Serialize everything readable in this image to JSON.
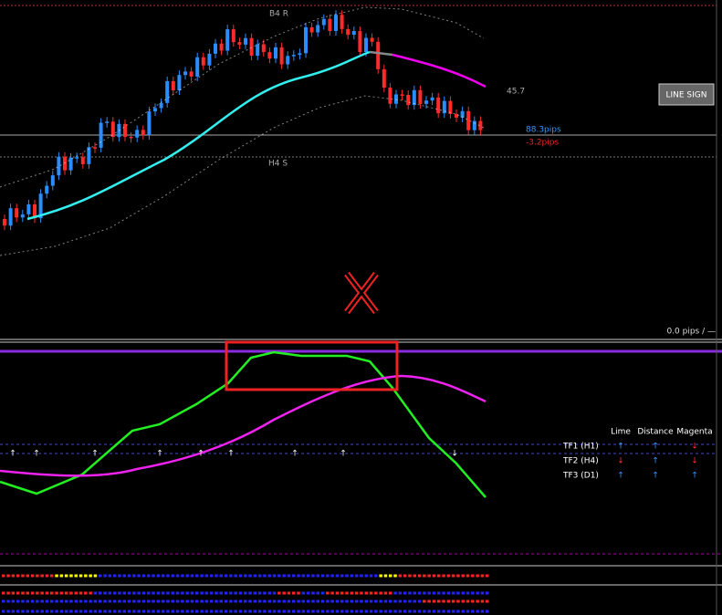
{
  "main_pane": {
    "resistance_label": "B4 R",
    "support_label": "H4 S",
    "level_value": "45.7",
    "profit_pips": "88.3pips",
    "loss_pips": "-3.2pips",
    "pips_status": "0.0 pips / —"
  },
  "button": {
    "label": "LINE SIGN"
  },
  "signal_table": {
    "headers": [
      "Lime",
      "Distance",
      "Magenta"
    ],
    "rows": [
      {
        "label": "TF1 (H1)",
        "cells": [
          "↑",
          "↑",
          "↓"
        ]
      },
      {
        "label": "TF2 (H4)",
        "cells": [
          "↓",
          "↑",
          "↓"
        ]
      },
      {
        "label": "TF3 (D1)",
        "cells": [
          "↑",
          "↑",
          "↑"
        ]
      }
    ]
  }
}
